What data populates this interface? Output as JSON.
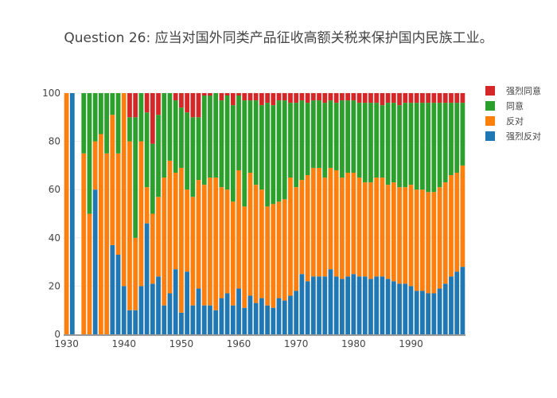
{
  "chart_data": {
    "type": "bar",
    "barmode": "stack",
    "title": "Question 26: 应当对国外同类产品征收高额关税来保护国内民族工业。",
    "xlabel": "",
    "ylabel": "",
    "ylim": [
      0,
      100
    ],
    "xlim": [
      1929.5,
      1999.5
    ],
    "xticks": [
      "1930",
      "1940",
      "1950",
      "1960",
      "1970",
      "1980",
      "1990"
    ],
    "yticks": [
      "0",
      "20",
      "40",
      "60",
      "80",
      "100"
    ],
    "legend_position": "right",
    "x_start": 1930,
    "series": [
      {
        "name": "强烈反对",
        "color": "#1f77b4",
        "values": [
          0,
          100,
          0,
          0,
          0,
          60,
          0,
          0,
          37,
          33,
          20,
          10,
          10,
          20,
          46,
          21,
          24,
          12,
          17,
          27,
          9,
          26,
          12,
          19,
          12,
          12,
          10,
          15,
          17,
          12,
          19,
          11,
          16,
          13,
          15,
          12,
          11,
          15,
          14,
          16,
          18,
          25,
          22,
          24,
          24,
          24,
          27,
          24,
          23,
          24,
          25,
          24,
          24,
          23,
          24,
          24,
          23,
          22,
          21,
          21,
          20,
          18,
          18,
          17,
          17,
          19,
          21,
          24,
          26,
          28
        ]
      },
      {
        "name": "反对",
        "color": "#ff7f0e",
        "values": [
          100,
          0,
          0,
          75,
          50,
          20,
          83,
          75,
          54,
          42,
          80,
          70,
          30,
          60,
          15,
          29,
          33,
          53,
          55,
          40,
          60,
          34,
          45,
          45,
          50,
          53,
          55,
          46,
          43,
          43,
          49,
          42,
          51,
          49,
          45,
          41,
          43,
          40,
          42,
          49,
          43,
          39,
          44,
          45,
          45,
          41,
          42,
          44,
          42,
          43,
          42,
          41,
          39,
          40,
          41,
          41,
          39,
          41,
          40,
          40,
          42,
          42,
          42,
          42,
          42,
          42,
          42,
          42,
          41,
          42
        ]
      },
      {
        "name": "同意",
        "color": "#2ca02c",
        "values": [
          0,
          0,
          0,
          25,
          50,
          20,
          17,
          25,
          9,
          25,
          0,
          10,
          50,
          20,
          31,
          29,
          34,
          35,
          28,
          30,
          25,
          32,
          33,
          26,
          37,
          34,
          35,
          36,
          39,
          40,
          31,
          44,
          30,
          35,
          35,
          43,
          41,
          42,
          41,
          31,
          35,
          33,
          30,
          28,
          28,
          31,
          28,
          28,
          32,
          30,
          30,
          31,
          33,
          33,
          31,
          30,
          34,
          33,
          34,
          35,
          34,
          36,
          36,
          37,
          37,
          35,
          33,
          30,
          29,
          26
        ]
      },
      {
        "name": "强烈同意",
        "color": "#d62728",
        "values": [
          0,
          0,
          0,
          0,
          0,
          0,
          0,
          0,
          0,
          0,
          0,
          10,
          10,
          0,
          8,
          21,
          9,
          0,
          0,
          3,
          6,
          8,
          10,
          10,
          1,
          1,
          0,
          3,
          1,
          5,
          1,
          3,
          3,
          3,
          5,
          4,
          5,
          3,
          3,
          4,
          4,
          3,
          4,
          3,
          3,
          4,
          3,
          4,
          3,
          3,
          3,
          4,
          4,
          4,
          4,
          5,
          4,
          4,
          5,
          4,
          4,
          4,
          4,
          4,
          4,
          4,
          4,
          4,
          4,
          4
        ]
      }
    ]
  }
}
